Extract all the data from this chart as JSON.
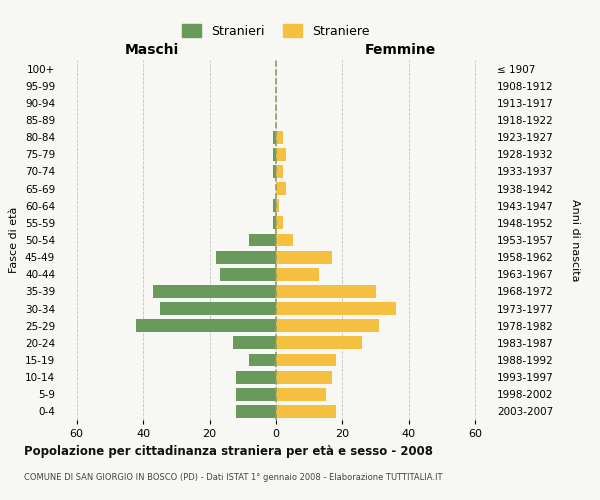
{
  "age_groups": [
    "0-4",
    "5-9",
    "10-14",
    "15-19",
    "20-24",
    "25-29",
    "30-34",
    "35-39",
    "40-44",
    "45-49",
    "50-54",
    "55-59",
    "60-64",
    "65-69",
    "70-74",
    "75-79",
    "80-84",
    "85-89",
    "90-94",
    "95-99",
    "100+"
  ],
  "birth_years": [
    "2003-2007",
    "1998-2002",
    "1993-1997",
    "1988-1992",
    "1983-1987",
    "1978-1982",
    "1973-1977",
    "1968-1972",
    "1963-1967",
    "1958-1962",
    "1953-1957",
    "1948-1952",
    "1943-1947",
    "1938-1942",
    "1933-1937",
    "1928-1932",
    "1923-1927",
    "1918-1922",
    "1913-1917",
    "1908-1912",
    "≤ 1907"
  ],
  "males": [
    12,
    12,
    12,
    8,
    13,
    42,
    35,
    37,
    17,
    18,
    8,
    1,
    1,
    0,
    1,
    1,
    1,
    0,
    0,
    0,
    0
  ],
  "females": [
    18,
    15,
    17,
    18,
    26,
    31,
    36,
    30,
    13,
    17,
    5,
    2,
    1,
    3,
    2,
    3,
    2,
    0,
    0,
    0,
    0
  ],
  "male_color": "#6a9a5b",
  "female_color": "#f5c040",
  "title": "Popolazione per cittadinanza straniera per età e sesso - 2008",
  "subtitle": "COMUNE DI SAN GIORGIO IN BOSCO (PD) - Dati ISTAT 1° gennaio 2008 - Elaborazione TUTTITALIA.IT",
  "ylabel_left": "Fasce di età",
  "ylabel_right": "Anni di nascita",
  "xlabel_left": "Maschi",
  "xlabel_right": "Femmine",
  "legend_male": "Stranieri",
  "legend_female": "Straniere",
  "xlim": 65,
  "background_color": "#f7f7f3",
  "grid_color": "#cccccc",
  "center_line_color": "#999966"
}
